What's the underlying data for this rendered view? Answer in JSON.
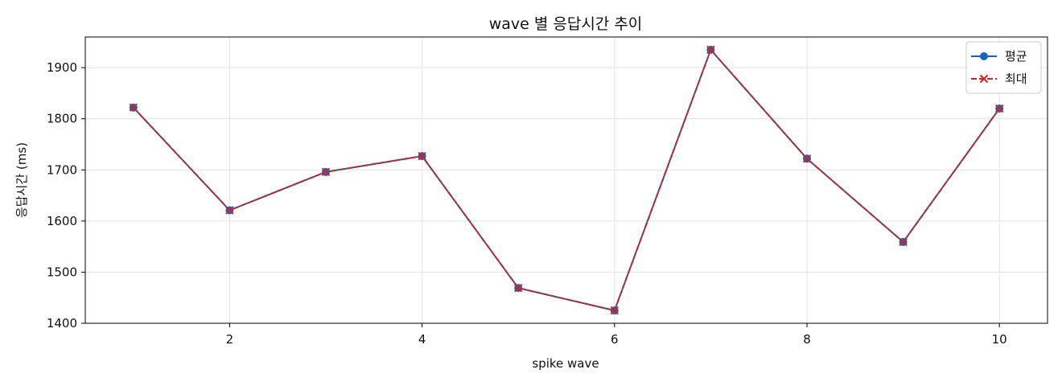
{
  "chart_data": {
    "type": "line",
    "title": "wave 별 응답시간 추이",
    "xlabel": "spike wave",
    "ylabel": "응답시간 (ms)",
    "x": [
      1,
      2,
      3,
      4,
      5,
      6,
      7,
      8,
      9,
      10
    ],
    "xlim": [
      0.5,
      10.5
    ],
    "ylim": [
      1400,
      1960
    ],
    "xticks": [
      2,
      4,
      6,
      8,
      10
    ],
    "yticks": [
      1400,
      1500,
      1600,
      1700,
      1800,
      1900
    ],
    "grid": true,
    "legend_position": "top-right",
    "series": [
      {
        "name": "평균",
        "values": [
          1822,
          1621,
          1696,
          1727,
          1469,
          1425,
          1935,
          1722,
          1559,
          1820
        ],
        "color": "#1565c0",
        "line_style": "solid",
        "marker": "circle"
      },
      {
        "name": "최대",
        "values": [
          1822,
          1621,
          1696,
          1727,
          1469,
          1425,
          1935,
          1722,
          1559,
          1820
        ],
        "color": "#c62828",
        "line_style": "dashed",
        "marker": "x"
      }
    ]
  }
}
